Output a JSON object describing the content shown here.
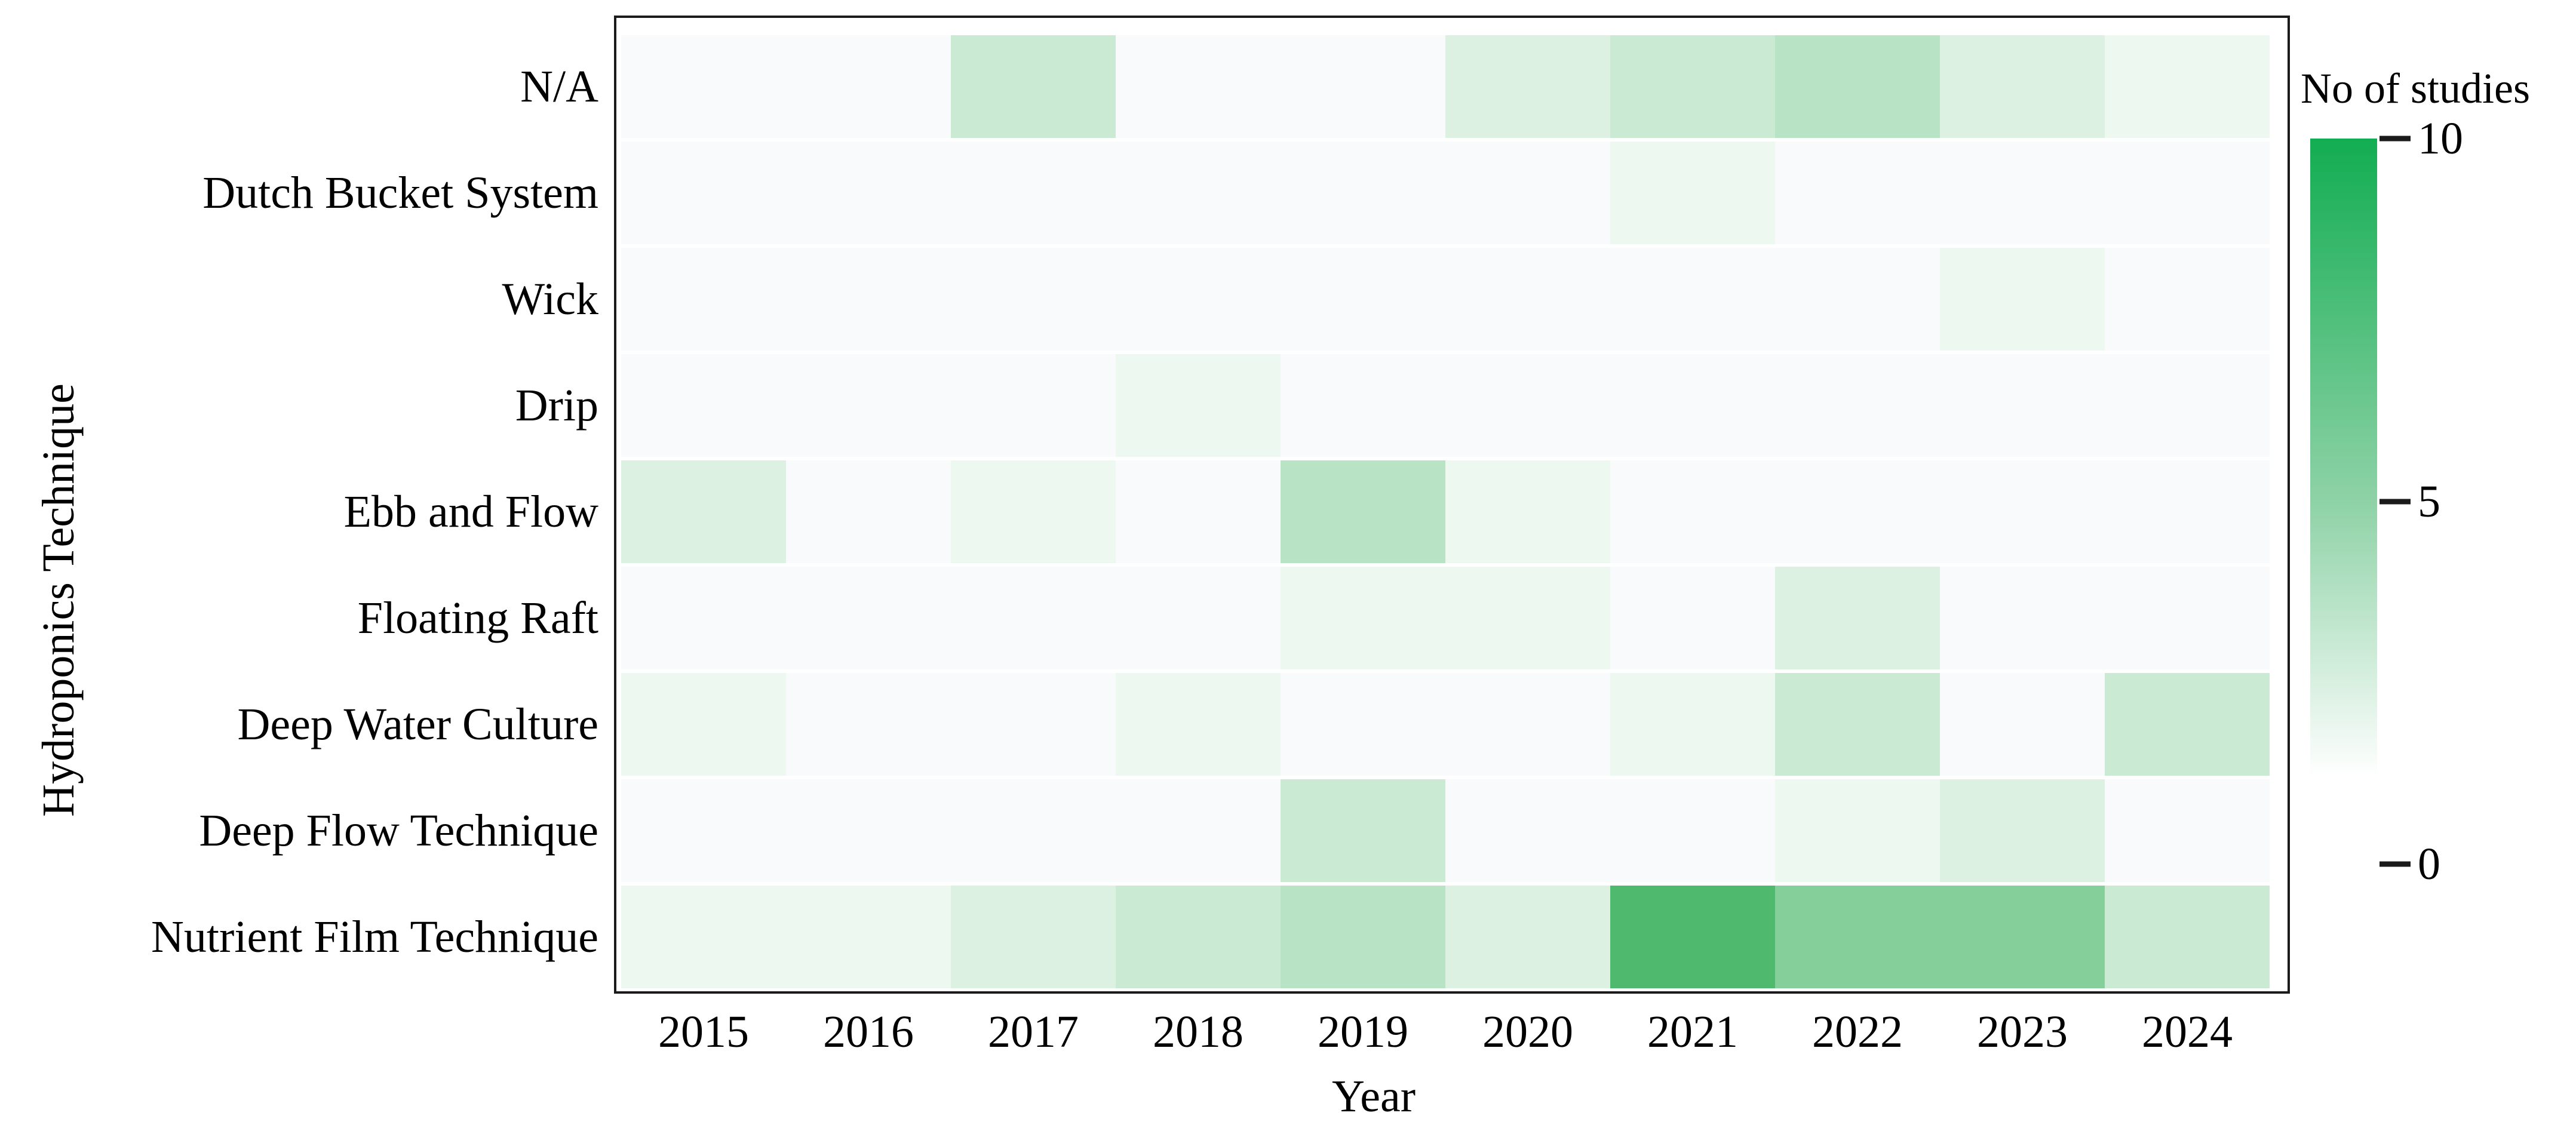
{
  "figure": {
    "background": "#ffffff",
    "plot_border_color": "#1b1b1b"
  },
  "chart_data": {
    "type": "heatmap",
    "title": "",
    "xlabel": "Year",
    "ylabel": "Hydroponics Technique",
    "x": [
      "2015",
      "2016",
      "2017",
      "2018",
      "2019",
      "2020",
      "2021",
      "2022",
      "2023",
      "2024"
    ],
    "y": [
      "N/A",
      "Dutch Bucket System",
      "Wick",
      "Drip",
      "Ebb and Flow",
      "Floating Raft",
      "Deep Water Culture",
      "Deep Flow Technique",
      "Nutrient Film Technique"
    ],
    "values": [
      [
        0,
        0,
        3,
        0,
        0,
        2,
        3,
        4,
        2,
        1
      ],
      [
        0,
        0,
        0,
        0,
        0,
        0,
        1,
        0,
        0,
        0
      ],
      [
        0,
        0,
        0,
        0,
        0,
        0,
        0,
        0,
        1,
        0
      ],
      [
        0,
        0,
        0,
        1,
        0,
        0,
        0,
        0,
        0,
        0
      ],
      [
        2,
        0,
        1,
        0,
        4,
        1,
        0,
        0,
        0,
        0
      ],
      [
        0,
        0,
        0,
        0,
        1,
        1,
        0,
        2,
        0,
        0
      ],
      [
        1,
        0,
        0,
        1,
        0,
        0,
        1,
        3,
        0,
        3
      ],
      [
        0,
        0,
        0,
        0,
        3,
        0,
        0,
        1,
        2,
        0
      ],
      [
        1,
        1,
        2,
        3,
        4,
        2,
        10,
        7,
        7,
        3
      ]
    ],
    "value_range": [
      0,
      10
    ],
    "grid": false,
    "legend_position": "right",
    "colorbar": {
      "title": "No of studies",
      "ticks": [
        10,
        5,
        0
      ],
      "top_color": "#12ad52",
      "mid_color": "#8ed2a6",
      "bottom_color": "#ffffff"
    },
    "cell_max_color": "#4fba6e",
    "cell_zero_color": "#f8fafb"
  }
}
